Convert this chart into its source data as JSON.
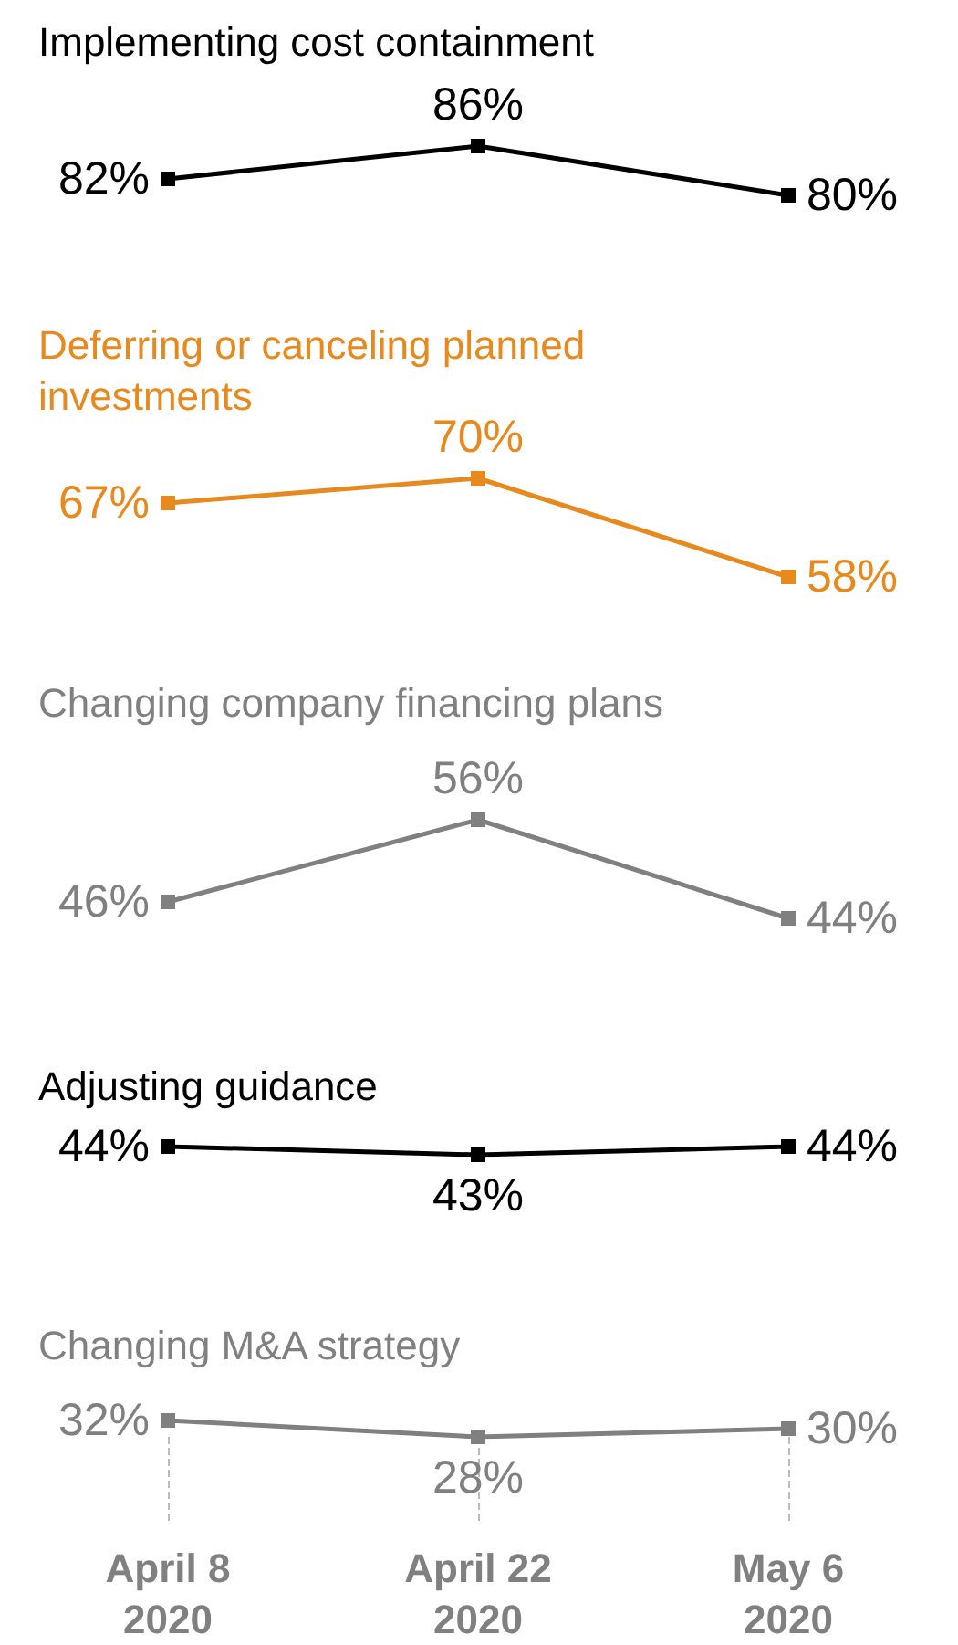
{
  "chart_data": [
    {
      "type": "line",
      "title": "Implementing cost containment",
      "categories": [
        null,
        null,
        null
      ],
      "series": [
        {
          "color": "#000000",
          "values": [
            82,
            86,
            80
          ],
          "value_labels": [
            "82%",
            "86%",
            "80%"
          ]
        }
      ],
      "marker": "square",
      "tick_labels": false
    },
    {
      "type": "line",
      "title": "Deferring or canceling planned investments",
      "categories": [
        null,
        null,
        null
      ],
      "series": [
        {
          "color": "#e8891e",
          "values": [
            67,
            70,
            58
          ],
          "value_labels": [
            "67%",
            "70%",
            "58%"
          ]
        }
      ],
      "marker": "square",
      "tick_labels": false
    },
    {
      "type": "line",
      "title": "Changing company financing plans",
      "categories": [
        null,
        null,
        null
      ],
      "series": [
        {
          "color": "#808080",
          "values": [
            46,
            56,
            44
          ],
          "value_labels": [
            "46%",
            "56%",
            "44%"
          ]
        }
      ],
      "marker": "square",
      "tick_labels": false
    },
    {
      "type": "line",
      "title": "Adjusting guidance",
      "categories": [
        null,
        null,
        null
      ],
      "series": [
        {
          "color": "#000000",
          "values": [
            44,
            43,
            44
          ],
          "value_labels": [
            "44%",
            "43%",
            "44%"
          ]
        }
      ],
      "marker": "square",
      "tick_labels": false
    },
    {
      "type": "line",
      "title": "Changing M&A strategy",
      "categories": [
        "April 8\n2020",
        "April 22\n2020",
        "May 6\n2020"
      ],
      "series": [
        {
          "color": "#808080",
          "values": [
            32,
            28,
            30
          ],
          "value_labels": [
            "32%",
            "28%",
            "30%"
          ]
        }
      ],
      "marker": "square",
      "tick_labels": "x"
    }
  ]
}
